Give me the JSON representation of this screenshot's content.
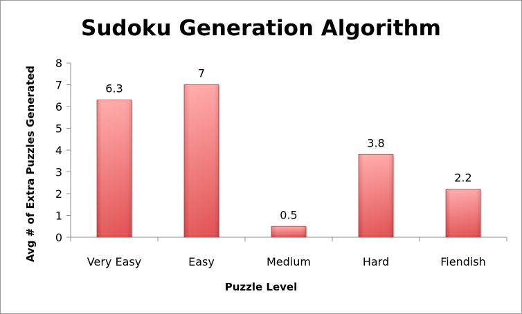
{
  "chart_data": {
    "type": "bar",
    "title": "Sudoku Generation Algorithm",
    "xlabel": "Puzzle Level",
    "ylabel": "Avg # of Extra Puzzles Generated",
    "categories": [
      "Very Easy",
      "Easy",
      "Medium",
      "Hard",
      "Fiendish"
    ],
    "values": [
      6.3,
      7,
      0.5,
      3.8,
      2.2
    ],
    "data_labels": [
      "6.3",
      "7",
      "0.5",
      "3.8",
      "2.2"
    ],
    "yticks": [
      "0",
      "1",
      "2",
      "3",
      "4",
      "5",
      "6",
      "7",
      "8"
    ],
    "ylim": [
      0,
      8
    ],
    "grid": false,
    "legend": "none",
    "bar_color": "#e0494b",
    "bar_highlight": "#ffa4a3"
  }
}
